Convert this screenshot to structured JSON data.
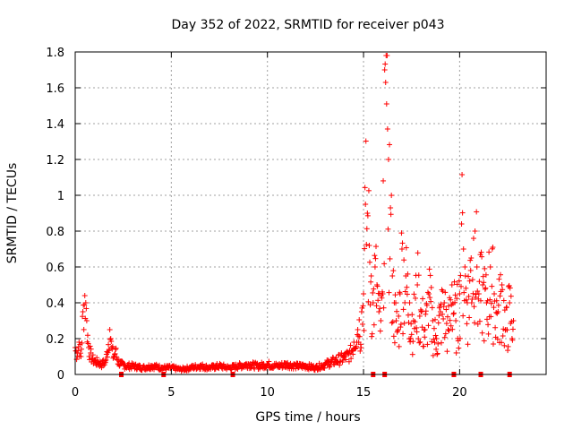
{
  "chart_data": {
    "type": "scatter",
    "title": "Day 352 of 2022, SRMTID for receiver p043",
    "xlabel": "GPS time / hours",
    "ylabel": "SRMTID / TECUs",
    "xlim": [
      0,
      24.5
    ],
    "ylim": [
      0,
      1.8
    ],
    "xticks": [
      0,
      5,
      10,
      15,
      20
    ],
    "xtick_labels": [
      "0",
      "5",
      "10",
      "15",
      "20"
    ],
    "yticks": [
      0,
      0.2,
      0.4,
      0.6,
      0.8,
      1.0,
      1.2,
      1.4,
      1.6,
      1.8
    ],
    "ytick_labels": [
      "0",
      "0.2",
      "0.4",
      "0.6",
      "0.8",
      "1",
      "1.2",
      "1.4",
      "1.6",
      "1.8"
    ],
    "grid": true,
    "marker": "+",
    "color": "#ff0000",
    "series": [
      {
        "name": "SRMTID p043",
        "x": [
          0.0,
          0.1,
          0.2,
          0.3,
          0.4,
          0.5,
          0.55,
          0.6,
          0.7,
          0.8,
          0.9,
          1.0,
          1.2,
          1.4,
          1.6,
          1.8,
          1.85,
          1.9,
          2.0,
          2.1,
          2.2,
          2.4,
          2.6,
          3.0,
          3.5,
          4.0,
          4.5,
          5.0,
          5.5,
          6.0,
          6.5,
          7.0,
          7.5,
          8.0,
          8.5,
          9.0,
          9.5,
          10.0,
          10.5,
          11.0,
          11.5,
          12.0,
          12.5,
          13.0,
          13.5,
          14.0,
          14.3,
          14.5,
          14.7,
          14.9,
          15.0,
          15.1,
          15.2,
          15.3,
          15.4,
          15.5,
          15.6,
          15.7,
          15.8,
          15.9,
          16.0,
          16.1,
          16.15,
          16.2,
          16.25,
          16.3,
          16.4,
          16.5,
          16.6,
          16.7,
          16.8,
          16.9,
          17.0,
          17.2,
          17.4,
          17.6,
          17.8,
          18.0,
          18.2,
          18.4,
          18.6,
          18.8,
          19.0,
          19.2,
          19.4,
          19.6,
          19.8,
          20.0,
          20.1,
          20.2,
          20.3,
          20.4,
          20.6,
          20.8,
          20.9,
          21.0,
          21.2,
          21.4,
          21.6,
          21.8,
          22.0,
          22.2,
          22.4,
          22.6,
          22.8
        ],
        "y": [
          0.15,
          0.12,
          0.18,
          0.1,
          0.35,
          0.44,
          0.4,
          0.3,
          0.15,
          0.12,
          0.09,
          0.08,
          0.07,
          0.06,
          0.08,
          0.25,
          0.2,
          0.15,
          0.1,
          0.14,
          0.08,
          0.06,
          0.05,
          0.05,
          0.04,
          0.05,
          0.04,
          0.04,
          0.03,
          0.04,
          0.05,
          0.04,
          0.05,
          0.04,
          0.05,
          0.06,
          0.05,
          0.06,
          0.05,
          0.06,
          0.05,
          0.05,
          0.04,
          0.06,
          0.08,
          0.1,
          0.12,
          0.18,
          0.25,
          0.35,
          0.45,
          0.95,
          0.9,
          0.72,
          0.55,
          0.4,
          0.6,
          0.5,
          0.35,
          0.3,
          0.45,
          1.7,
          1.63,
          1.51,
          1.37,
          1.2,
          0.93,
          0.55,
          0.4,
          0.3,
          0.25,
          0.45,
          0.7,
          0.55,
          0.4,
          0.3,
          0.5,
          0.35,
          0.25,
          0.45,
          0.3,
          0.2,
          0.35,
          0.4,
          0.25,
          0.5,
          0.3,
          0.45,
          0.84,
          0.7,
          0.55,
          0.4,
          0.65,
          0.8,
          0.6,
          0.45,
          0.5,
          0.4,
          0.6,
          0.45,
          0.35,
          0.5,
          0.25,
          0.4,
          0.3
        ],
        "zero_markers_x": [
          2.4,
          4.6,
          8.2,
          15.5,
          16.1,
          19.7,
          21.1,
          22.6
        ]
      }
    ]
  }
}
